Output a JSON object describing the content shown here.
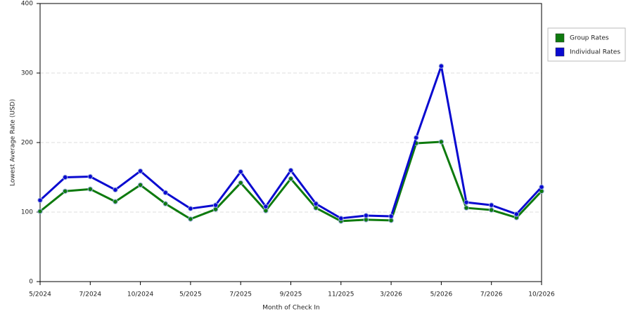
{
  "chart_data": {
    "type": "line",
    "x_label": "Month of Check In",
    "y_label": "Lowest Average Rate (USD)",
    "categories": [
      "5/2024",
      null,
      "7/2024",
      null,
      "10/2024",
      null,
      "5/2025",
      null,
      "7/2025",
      null,
      "9/2025",
      null,
      "11/2025",
      null,
      "3/2026",
      null,
      "5/2026",
      null,
      "7/2026",
      null,
      "10/2026"
    ],
    "series": [
      {
        "name": "Group Rates",
        "color": "#0e7a0e",
        "values": [
          101,
          130,
          133,
          115,
          139,
          112,
          90,
          104,
          142,
          102,
          148,
          106,
          87,
          89,
          88,
          199,
          201,
          106,
          103,
          92,
          130
        ]
      },
      {
        "name": "Individual Rates",
        "color": "#0a0ad0",
        "values": [
          117,
          150,
          151,
          132,
          159,
          128,
          105,
          110,
          158,
          108,
          160,
          112,
          91,
          95,
          94,
          207,
          310,
          114,
          110,
          97,
          136
        ]
      }
    ],
    "ylim": [
      0,
      400
    ],
    "yticks": [
      0,
      100,
      200,
      300,
      400
    ],
    "grid": true,
    "legend": "right"
  }
}
